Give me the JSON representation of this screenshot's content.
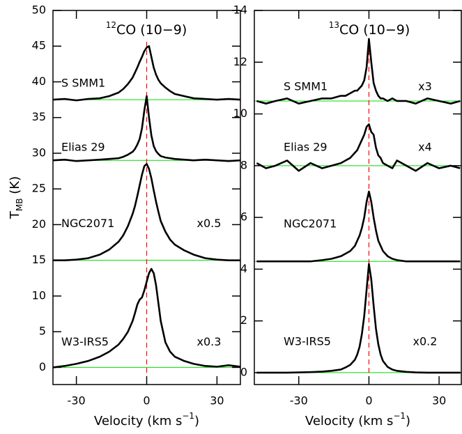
{
  "chart_data": [
    {
      "type": "line",
      "title_sup": "12",
      "title": "CO (10−9)",
      "ylabel": "T",
      "ylabel_sub": "MB",
      "ylabel_unit": " (K)",
      "xlabel": "Velocity (km s",
      "xlabel_sup": "−1",
      "xlabel_end": ")",
      "xlim": [
        -40,
        40
      ],
      "xticks": [
        -30,
        0,
        30
      ],
      "ylim": [
        -2.4,
        50
      ],
      "yticks": [
        0,
        5,
        10,
        15,
        20,
        25,
        30,
        35,
        40,
        45,
        50
      ],
      "vline": 0,
      "vline_color": "#ff0000",
      "baseline_color": "#00dd00",
      "x": [
        -40,
        -35,
        -30,
        -25,
        -20,
        -16,
        -12,
        -10,
        -8,
        -6,
        -5,
        -4,
        -3,
        -2,
        -1,
        0,
        1,
        2,
        3,
        4,
        5,
        6,
        8,
        10,
        12,
        16,
        20,
        25,
        30,
        35,
        40
      ],
      "series": [
        {
          "name": "S SMM1",
          "color": "#000000",
          "baseline": 37.5,
          "values": [
            37.5,
            37.6,
            37.4,
            37.6,
            37.7,
            38.0,
            38.5,
            39.0,
            39.7,
            40.6,
            41.3,
            42.0,
            42.8,
            43.5,
            44.3,
            44.8,
            45.0,
            43.5,
            42.0,
            41.0,
            40.3,
            39.8,
            39.2,
            38.7,
            38.3,
            38.0,
            37.7,
            37.6,
            37.5,
            37.6,
            37.5
          ]
        },
        {
          "name": "Elias 29",
          "color": "#000000",
          "baseline": 29,
          "values": [
            29.0,
            29.1,
            28.9,
            29.0,
            29.1,
            29.2,
            29.3,
            29.5,
            29.8,
            30.2,
            30.6,
            31.2,
            32.0,
            33.5,
            36.0,
            38.0,
            35.0,
            32.5,
            31.0,
            30.3,
            29.9,
            29.6,
            29.4,
            29.3,
            29.2,
            29.1,
            29.0,
            29.1,
            29.0,
            28.9,
            29.0
          ]
        },
        {
          "name": "NGC2071",
          "color": "#000000",
          "baseline": 15,
          "scale_label": "x0.5",
          "values": [
            15.0,
            15.0,
            15.1,
            15.3,
            15.8,
            16.5,
            17.6,
            18.5,
            19.8,
            21.5,
            22.6,
            24.0,
            25.5,
            27.0,
            28.2,
            28.5,
            27.8,
            26.5,
            24.8,
            23.2,
            21.8,
            20.5,
            19.0,
            17.9,
            17.2,
            16.4,
            15.8,
            15.3,
            15.1,
            15.0,
            15.0
          ]
        },
        {
          "name": "W3-IRS5",
          "color": "#000000",
          "baseline": 0,
          "scale_label": "x0.3",
          "values": [
            0.0,
            0.2,
            0.5,
            0.9,
            1.5,
            2.2,
            3.2,
            4.0,
            5.0,
            6.5,
            7.6,
            8.8,
            9.5,
            9.8,
            10.8,
            12.0,
            13.2,
            13.8,
            13.2,
            11.5,
            9.0,
            6.5,
            3.5,
            2.2,
            1.5,
            0.9,
            0.5,
            0.2,
            0.1,
            0.3,
            0.1
          ]
        }
      ]
    },
    {
      "type": "line",
      "title_sup": "13",
      "title": "CO (10−9)",
      "xlabel": "Velocity (km s",
      "xlabel_sup": "−1",
      "xlabel_end": ")",
      "xlim": [
        -49,
        39.5
      ],
      "xticks": [
        -30,
        0,
        30
      ],
      "ylim": [
        -0.46,
        14
      ],
      "yticks": [
        0,
        2,
        4,
        6,
        8,
        10,
        12,
        14
      ],
      "vline": 0,
      "vline_color": "#ff0000",
      "baseline_color": "#00dd00",
      "x": [
        -48,
        -44,
        -40,
        -35,
        -30,
        -25,
        -20,
        -16,
        -12,
        -10,
        -8,
        -6,
        -5,
        -4,
        -3,
        -2,
        -1,
        0,
        1,
        2,
        3,
        4,
        5,
        6,
        8,
        10,
        12,
        16,
        20,
        25,
        30,
        35,
        39
      ],
      "series": [
        {
          "name": "S SMM1",
          "color": "#000000",
          "baseline": 10.5,
          "scale_label": "x3",
          "values": [
            10.5,
            10.4,
            10.5,
            10.6,
            10.4,
            10.5,
            10.6,
            10.6,
            10.7,
            10.7,
            10.8,
            10.9,
            10.9,
            11.0,
            11.1,
            11.3,
            11.8,
            12.9,
            12.0,
            11.2,
            10.9,
            10.7,
            10.6,
            10.6,
            10.5,
            10.6,
            10.5,
            10.5,
            10.4,
            10.6,
            10.5,
            10.4,
            10.5
          ]
        },
        {
          "name": "Elias 29",
          "color": "#000000",
          "baseline": 8,
          "scale_label": "x4",
          "values": [
            8.1,
            7.9,
            8.0,
            8.2,
            7.8,
            8.1,
            7.9,
            8.0,
            8.1,
            8.2,
            8.3,
            8.5,
            8.6,
            8.8,
            9.0,
            9.2,
            9.5,
            9.6,
            9.3,
            9.2,
            8.7,
            8.4,
            8.3,
            8.1,
            8.0,
            7.9,
            8.2,
            8.0,
            7.8,
            8.1,
            7.9,
            8.0,
            7.9
          ]
        },
        {
          "name": "NGC2071",
          "color": "#000000",
          "baseline": 4.3,
          "values": [
            4.3,
            4.3,
            4.3,
            4.3,
            4.3,
            4.3,
            4.35,
            4.4,
            4.5,
            4.6,
            4.7,
            4.9,
            5.1,
            5.3,
            5.6,
            6.0,
            6.6,
            7.0,
            6.6,
            6.0,
            5.5,
            5.1,
            4.9,
            4.7,
            4.5,
            4.4,
            4.35,
            4.3,
            4.3,
            4.3,
            4.3,
            4.3,
            4.3
          ]
        },
        {
          "name": "W3-IRS5",
          "color": "#000000",
          "baseline": 0,
          "scale_label": "x0.2",
          "values": [
            0,
            0,
            0,
            0,
            0.01,
            0.02,
            0.04,
            0.07,
            0.12,
            0.2,
            0.3,
            0.5,
            0.7,
            1.0,
            1.5,
            2.2,
            3.2,
            4.2,
            3.6,
            2.6,
            1.7,
            1.1,
            0.7,
            0.45,
            0.22,
            0.12,
            0.07,
            0.03,
            0.01,
            0,
            0,
            0,
            0
          ]
        }
      ]
    }
  ]
}
